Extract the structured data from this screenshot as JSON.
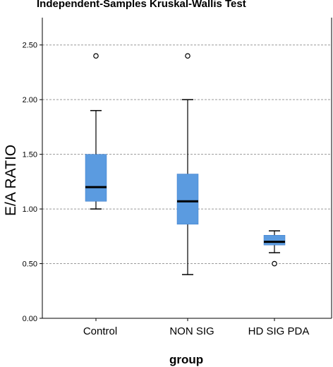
{
  "chart_data": {
    "type": "box",
    "title": "Independent-Samples Kruskal-Wallis Test",
    "xlabel": "group",
    "ylabel": "E/A RATIO",
    "ylim": [
      0,
      2.75
    ],
    "yticks": [
      "0.00",
      "0.50",
      "1.00",
      "1.50",
      "2.00",
      "2.50"
    ],
    "grid": "horizontal dashed",
    "box_color": "#5b9be0",
    "categories": [
      "Control",
      "NON SIG",
      "HD SIG PDA"
    ],
    "boxes": [
      {
        "category": "Control",
        "whisker_low": 1.0,
        "q1": 1.07,
        "median": 1.2,
        "q3": 1.5,
        "whisker_high": 1.9,
        "outliers": [
          2.4
        ]
      },
      {
        "category": "NON SIG",
        "whisker_low": 0.4,
        "q1": 0.86,
        "median": 1.07,
        "q3": 1.32,
        "whisker_high": 2.0,
        "outliers": [
          2.4
        ]
      },
      {
        "category": "HD SIG PDA",
        "whisker_low": 0.6,
        "q1": 0.67,
        "median": 0.7,
        "q3": 0.76,
        "whisker_high": 0.8,
        "outliers": [
          0.5
        ]
      }
    ]
  }
}
